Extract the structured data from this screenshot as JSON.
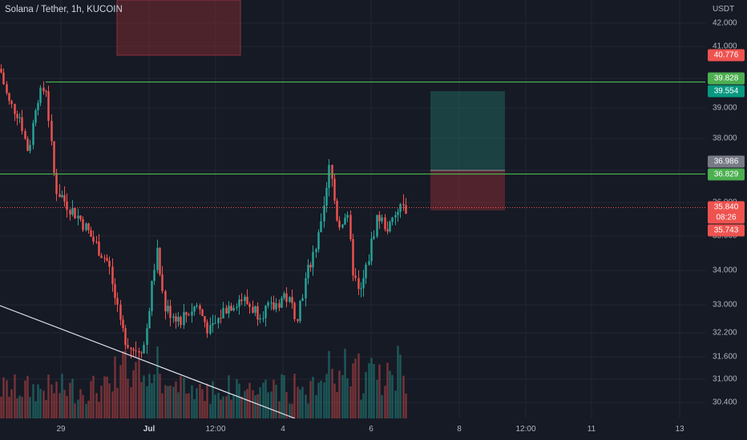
{
  "symbol_title": "Solana / Tether, 1h, KUCOIN",
  "currency": "USDT",
  "colors": {
    "background": "#161a25",
    "up": "#26a69a",
    "down": "#ef5350",
    "hline": "#4caf50",
    "trendline": "#e0e3eb",
    "grid": "#222632"
  },
  "price_axis_ticks": [
    "42.000",
    "41.000",
    "39.000",
    "38.000",
    "36.000",
    "35.000",
    "34.000",
    "33.000",
    "32.200",
    "31.600",
    "31.000",
    "30.400"
  ],
  "price_badges": [
    {
      "label": "40.776",
      "color": "#ef5350"
    },
    {
      "label": "39.828",
      "color": "#4caf50"
    },
    {
      "label": "39.554",
      "color": "#089981"
    },
    {
      "label": "36.986",
      "color": "#787b86"
    },
    {
      "label": "36.829",
      "color": "#4caf50"
    },
    {
      "label": "35.840",
      "color": "#ef5350"
    },
    {
      "label": "08:26",
      "color": "#ef5350"
    },
    {
      "label": "35.743",
      "color": "#ef5350"
    }
  ],
  "time_axis_ticks": [
    {
      "label": "29",
      "bold": false
    },
    {
      "label": "Jul",
      "bold": true
    },
    {
      "label": "12:00",
      "bold": false
    },
    {
      "label": "4",
      "bold": false
    },
    {
      "label": "6",
      "bold": false
    },
    {
      "label": "8",
      "bold": false
    },
    {
      "label": "12:00",
      "bold": false
    },
    {
      "label": "11",
      "bold": false
    },
    {
      "label": "13",
      "bold": false
    }
  ],
  "horizontal_levels": [
    39.828,
    36.829
  ],
  "last_price": 35.84,
  "position_tool": {
    "entry": 36.986,
    "target": 39.554,
    "stop": 35.743
  }
}
